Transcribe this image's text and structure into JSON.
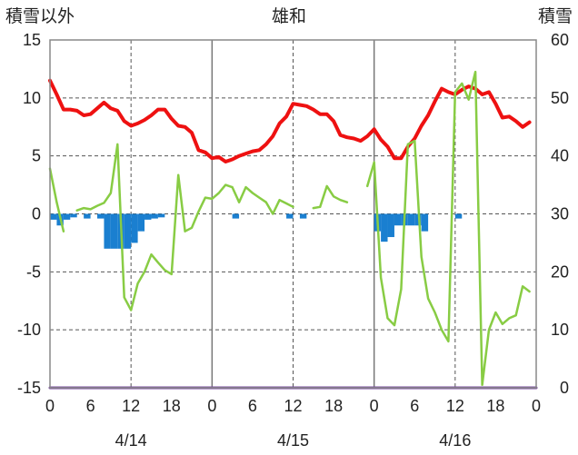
{
  "chart_data": {
    "type": "line",
    "title": "雄和",
    "left_axis_label": "積雪以外",
    "right_axis_label": "積雪",
    "left_ylim": [
      -15,
      15
    ],
    "left_yticks": [
      15,
      10,
      5,
      0,
      -5,
      -10,
      -15
    ],
    "right_ylim": [
      0,
      60
    ],
    "right_yticks": [
      60,
      50,
      40,
      30,
      20,
      10,
      0
    ],
    "x_range_hours": [
      0,
      72
    ],
    "x_tick_labels": [
      "0",
      "6",
      "12",
      "18",
      "0",
      "6",
      "12",
      "18",
      "0",
      "6",
      "12",
      "18",
      "0"
    ],
    "date_labels": [
      {
        "label": "4/14",
        "hour": 12
      },
      {
        "label": "4/15",
        "hour": 36
      },
      {
        "label": "4/16",
        "hour": 60
      }
    ],
    "grid": true,
    "series": [
      {
        "key": "red",
        "color": "#ee1111",
        "axis": "left",
        "kind": "line",
        "values": [
          [
            0,
            11.5
          ],
          [
            1,
            10.3
          ],
          [
            2,
            9.0
          ],
          [
            3,
            9.0
          ],
          [
            4,
            8.9
          ],
          [
            5,
            8.5
          ],
          [
            6,
            8.6
          ],
          [
            7,
            9.1
          ],
          [
            8,
            9.6
          ],
          [
            9,
            9.1
          ],
          [
            10,
            8.9
          ],
          [
            11,
            8.0
          ],
          [
            12,
            7.6
          ],
          [
            13,
            7.8
          ],
          [
            14,
            8.1
          ],
          [
            15,
            8.5
          ],
          [
            16,
            9.0
          ],
          [
            17,
            9.0
          ],
          [
            18,
            8.2
          ],
          [
            19,
            7.6
          ],
          [
            20,
            7.5
          ],
          [
            21,
            7.0
          ],
          [
            22,
            5.5
          ],
          [
            23,
            5.3
          ],
          [
            24,
            4.8
          ],
          [
            25,
            4.9
          ],
          [
            26,
            4.5
          ],
          [
            27,
            4.7
          ],
          [
            28,
            5.0
          ],
          [
            29,
            5.2
          ],
          [
            30,
            5.4
          ],
          [
            31,
            5.5
          ],
          [
            32,
            6.0
          ],
          [
            33,
            6.7
          ],
          [
            34,
            7.8
          ],
          [
            35,
            8.4
          ],
          [
            36,
            9.5
          ],
          [
            37,
            9.4
          ],
          [
            38,
            9.3
          ],
          [
            39,
            9.0
          ],
          [
            40,
            8.6
          ],
          [
            41,
            8.6
          ],
          [
            42,
            8.0
          ],
          [
            43,
            6.8
          ],
          [
            44,
            6.6
          ],
          [
            45,
            6.5
          ],
          [
            46,
            6.3
          ],
          [
            47,
            6.7
          ],
          [
            48,
            7.3
          ],
          [
            49,
            6.4
          ],
          [
            50,
            5.8
          ],
          [
            51,
            4.8
          ],
          [
            52,
            4.8
          ],
          [
            53,
            5.8
          ],
          [
            54,
            6.5
          ],
          [
            55,
            7.6
          ],
          [
            56,
            8.5
          ],
          [
            57,
            9.7
          ],
          [
            58,
            10.8
          ],
          [
            59,
            10.5
          ],
          [
            60,
            10.3
          ],
          [
            61,
            10.7
          ],
          [
            62,
            11.0
          ],
          [
            63,
            10.8
          ],
          [
            64,
            10.3
          ],
          [
            65,
            10.5
          ],
          [
            66,
            9.5
          ],
          [
            67,
            8.3
          ],
          [
            68,
            8.4
          ],
          [
            69,
            8.0
          ],
          [
            70,
            7.5
          ],
          [
            71,
            7.9
          ]
        ]
      },
      {
        "key": "green",
        "color": "#88cc44",
        "axis": "right",
        "kind": "line",
        "values": [
          [
            0,
            37.8
          ],
          [
            1,
            32.0
          ],
          [
            2,
            27.0
          ],
          [
            null,
            null
          ],
          [
            4,
            30.6
          ],
          [
            5,
            31.0
          ],
          [
            6,
            30.8
          ],
          [
            7,
            31.4
          ],
          [
            8,
            31.9
          ],
          [
            9,
            33.6
          ],
          [
            10,
            42.0
          ],
          [
            11,
            15.6
          ],
          [
            12,
            13.4
          ],
          [
            13,
            18.0
          ],
          [
            14,
            20.0
          ],
          [
            15,
            23.0
          ],
          [
            16,
            21.6
          ],
          [
            17,
            20.3
          ],
          [
            18,
            19.6
          ],
          [
            19,
            36.7
          ],
          [
            20,
            27.0
          ],
          [
            21,
            27.6
          ],
          [
            22,
            30.4
          ],
          [
            23,
            32.8
          ],
          [
            24,
            32.6
          ],
          [
            25,
            33.6
          ],
          [
            26,
            35.0
          ],
          [
            27,
            34.6
          ],
          [
            28,
            32.0
          ],
          [
            29,
            34.6
          ],
          [
            30,
            33.6
          ],
          [
            31,
            32.8
          ],
          [
            32,
            32.0
          ],
          [
            33,
            30.0
          ],
          [
            34,
            32.4
          ],
          [
            35,
            31.8
          ],
          [
            36,
            31.2
          ],
          [
            null,
            null
          ],
          [
            39,
            31.0
          ],
          [
            40,
            31.2
          ],
          [
            41,
            34.8
          ],
          [
            42,
            33.0
          ],
          [
            43,
            32.4
          ],
          [
            44,
            32.0
          ],
          [
            null,
            null
          ],
          [
            47,
            34.8
          ],
          [
            48,
            38.9
          ],
          [
            49,
            19.0
          ],
          [
            50,
            12.0
          ],
          [
            51,
            10.8
          ],
          [
            52,
            17.0
          ],
          [
            53,
            42.0
          ],
          [
            54,
            42.6
          ],
          [
            55,
            22.6
          ],
          [
            56,
            15.4
          ],
          [
            57,
            13.0
          ],
          [
            58,
            10.0
          ],
          [
            59,
            8.0
          ],
          [
            60,
            51.0
          ],
          [
            61,
            52.5
          ],
          [
            62,
            49.7
          ],
          [
            63,
            54.5
          ],
          [
            64,
            0.5
          ],
          [
            65,
            10.0
          ],
          [
            66,
            13.0
          ],
          [
            67,
            11.0
          ],
          [
            68,
            12.0
          ],
          [
            69,
            12.5
          ],
          [
            70,
            17.5
          ],
          [
            71,
            16.6
          ]
        ]
      },
      {
        "key": "blue",
        "color": "#1a7fd0",
        "axis": "left",
        "kind": "bar",
        "values": [
          [
            0,
            -0.5
          ],
          [
            1,
            -1.0
          ],
          [
            2,
            -0.5
          ],
          [
            3,
            -0.3
          ],
          [
            5,
            -0.4
          ],
          [
            7,
            -0.4
          ],
          [
            8,
            -3.0
          ],
          [
            9,
            -3.0
          ],
          [
            10,
            -3.0
          ],
          [
            11,
            -3.0
          ],
          [
            12,
            -2.5
          ],
          [
            13,
            -1.5
          ],
          [
            14,
            -0.5
          ],
          [
            15,
            -0.4
          ],
          [
            16,
            -0.3
          ],
          [
            27,
            -0.4
          ],
          [
            35,
            -0.4
          ],
          [
            37,
            -0.4
          ],
          [
            48,
            -1.5
          ],
          [
            49,
            -2.4
          ],
          [
            50,
            -2.0
          ],
          [
            51,
            -1.0
          ],
          [
            52,
            -1.0
          ],
          [
            53,
            -1.0
          ],
          [
            54,
            -1.0
          ],
          [
            55,
            -1.5
          ],
          [
            60,
            -0.4
          ]
        ]
      },
      {
        "key": "purple",
        "color": "#7a4aa0",
        "axis": "left",
        "kind": "line",
        "values": [
          [
            0,
            -15
          ],
          [
            72,
            -15
          ]
        ]
      }
    ]
  }
}
